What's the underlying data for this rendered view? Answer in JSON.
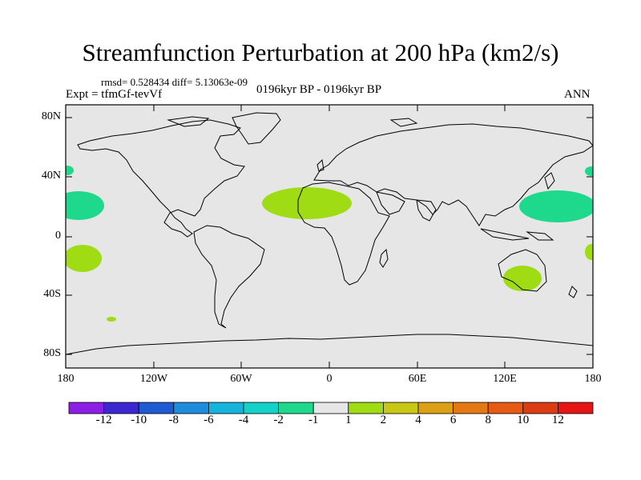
{
  "title": "Streamfunction Perturbation at 200 hPa (km2/s)",
  "stats": "rmsd= 0.528434 diff= 5.13063e-09",
  "experiment": "Expt = tfmGf-tevVf",
  "period": "0196kyr BP - 0196kyr BP",
  "season": "ANN",
  "map": {
    "background": "#e6e6e6",
    "lat_ticks": [
      "80N",
      "40N",
      "0",
      "40S",
      "80S"
    ],
    "lon_ticks": [
      "180",
      "120W",
      "60W",
      "0",
      "60E",
      "120E",
      "180"
    ]
  },
  "anomaly_regions": [
    {
      "name": "north-pacific-east",
      "level": "-2 to -1",
      "color": "#1ed98c"
    },
    {
      "name": "north-atlantic-africa",
      "level": "1 to 2",
      "color": "#a0dc14"
    },
    {
      "name": "west-pacific",
      "level": "-2 to -1",
      "color": "#1ed98c"
    },
    {
      "name": "south-pacific-east",
      "level": "1 to 2",
      "color": "#a0dc14"
    },
    {
      "name": "australia",
      "level": "1 to 2",
      "color": "#a0dc14"
    }
  ],
  "colorbar": {
    "colors": [
      "#8c1ee6",
      "#3c28d2",
      "#1e5ad2",
      "#1e8cdc",
      "#14b4dc",
      "#14d2c8",
      "#1ed98c",
      "#e6e6e6",
      "#a0dc14",
      "#c8c814",
      "#dca014",
      "#e67814",
      "#e65a14",
      "#dc3c14",
      "#e61414"
    ],
    "labels": [
      "-12",
      "-10",
      "-8",
      "-6",
      "-4",
      "-2",
      "-1",
      "1",
      "2",
      "4",
      "6",
      "8",
      "10",
      "12"
    ]
  }
}
